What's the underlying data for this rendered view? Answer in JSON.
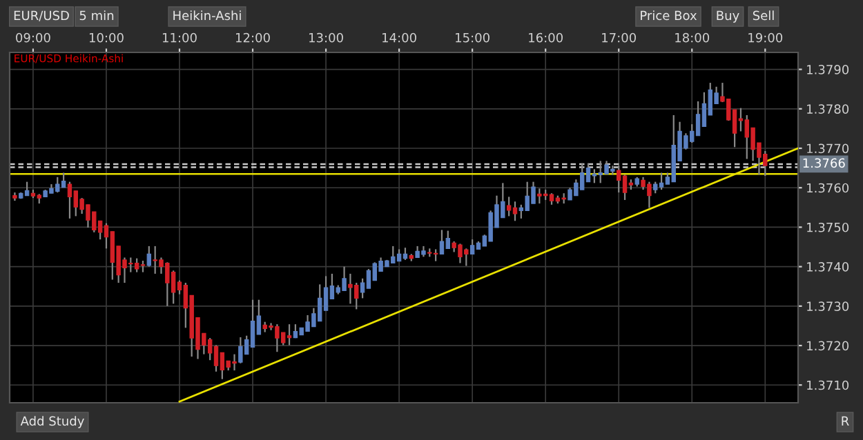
{
  "chart_data": {
    "type": "candlestick",
    "annotations": [
      "EUR/USD Heikin-Ashi",
      "EUR/USD",
      "5 min",
      "Heikin-Ashi",
      "Price Box",
      "Buy",
      "Sell",
      "Add Study",
      "R"
    ],
    "x": [
      8.75,
      8.8333,
      8.9167,
      9,
      9.0833,
      9.1667,
      9.25,
      9.3333,
      9.4167,
      9.5,
      9.5833,
      9.6667,
      9.75,
      9.8333,
      9.9167,
      10,
      10.0833,
      10.1667,
      10.25,
      10.3333,
      10.4167,
      10.5,
      10.5833,
      10.6667,
      10.75,
      10.8333,
      10.9167,
      11,
      11.0833,
      11.1667,
      11.25,
      11.3333,
      11.4167,
      11.5,
      11.5833,
      11.6667,
      11.75,
      11.8333,
      11.9167,
      12,
      12.0833,
      12.1667,
      12.25,
      12.3333,
      12.4167,
      12.5,
      12.5833,
      12.6667,
      12.75,
      12.8333,
      12.9167,
      13,
      13.0833,
      13.1667,
      13.25,
      13.3333,
      13.4167,
      13.5,
      13.5833,
      13.6667,
      13.75,
      13.8333,
      13.9167,
      14,
      14.0833,
      14.1667,
      14.25,
      14.3333,
      14.4167,
      14.5,
      14.5833,
      14.6667,
      14.75,
      14.8333,
      14.9167,
      15,
      15.0833,
      15.1667,
      15.25,
      15.3333,
      15.4167,
      15.5,
      15.5833,
      15.6667,
      15.75,
      15.8333,
      15.9167,
      16,
      16.0833,
      16.1667,
      16.25,
      16.3333,
      16.4167,
      16.5,
      16.5833,
      16.6667,
      16.75,
      16.8333,
      16.9167,
      17,
      17.0833,
      17.1667,
      17.25,
      17.3333,
      17.4167,
      17.5,
      17.5833,
      17.6667,
      17.75,
      17.8333,
      17.9167,
      18,
      18.0833,
      18.1667,
      18.25,
      18.3333,
      18.4167,
      18.5,
      18.5833,
      18.6667,
      18.75,
      18.8333,
      18.9167,
      19
    ],
    "ohlc": [
      [
        1.3758,
        1.37588,
        1.37567,
        1.37574
      ],
      [
        1.37574,
        1.37588,
        1.37572,
        1.37586
      ],
      [
        1.3758,
        1.37615,
        1.3758,
        1.37593
      ],
      [
        1.37586,
        1.37595,
        1.37574,
        1.37579
      ],
      [
        1.37581,
        1.37584,
        1.3756,
        1.37574
      ],
      [
        1.37577,
        1.37595,
        1.37577,
        1.37592
      ],
      [
        1.37586,
        1.37609,
        1.37586,
        1.37598
      ],
      [
        1.37591,
        1.37627,
        1.37588,
        1.37609
      ],
      [
        1.37601,
        1.37638,
        1.37601,
        1.37617
      ],
      [
        1.37609,
        1.37615,
        1.37522,
        1.37577
      ],
      [
        1.37592,
        1.37592,
        1.37528,
        1.37551
      ],
      [
        1.37571,
        1.37574,
        1.37534,
        1.37545
      ],
      [
        1.37557,
        1.37557,
        1.37499,
        1.37518
      ],
      [
        1.37539,
        1.37539,
        1.37487,
        1.37493
      ],
      [
        1.37516,
        1.37516,
        1.37469,
        1.37487
      ],
      [
        1.37504,
        1.3751,
        1.37446,
        1.37475
      ],
      [
        1.37489,
        1.37489,
        1.37367,
        1.37411
      ],
      [
        1.37452,
        1.37452,
        1.37359,
        1.37379
      ],
      [
        1.37417,
        1.37423,
        1.37359,
        1.37397
      ],
      [
        1.37409,
        1.37423,
        1.37386,
        1.37407
      ],
      [
        1.37409,
        1.37421,
        1.37386,
        1.37394
      ],
      [
        1.37405,
        1.37415,
        1.37386,
        1.37403
      ],
      [
        1.37403,
        1.37452,
        1.374,
        1.37432
      ],
      [
        1.37417,
        1.37452,
        1.37382,
        1.37415
      ],
      [
        1.37417,
        1.37423,
        1.37382,
        1.374
      ],
      [
        1.37409,
        1.37411,
        1.373,
        1.37359
      ],
      [
        1.37386,
        1.3739,
        1.37306,
        1.37335
      ],
      [
        1.37361,
        1.37365,
        1.3733,
        1.37341
      ],
      [
        1.37353,
        1.37359,
        1.37245,
        1.37295
      ],
      [
        1.37327,
        1.37327,
        1.37172,
        1.37219
      ],
      [
        1.37271,
        1.37271,
        1.37166,
        1.3719
      ],
      [
        1.37231,
        1.37231,
        1.37178,
        1.37201
      ],
      [
        1.37215,
        1.37219,
        1.37163,
        1.37181
      ],
      [
        1.37198,
        1.37201,
        1.37134,
        1.37149
      ],
      [
        1.37182,
        1.37182,
        1.37115,
        1.37138
      ],
      [
        1.37161,
        1.37161,
        1.37137,
        1.37145
      ],
      [
        1.37159,
        1.37178,
        1.37137,
        1.37155
      ],
      [
        1.37158,
        1.37221,
        1.37155,
        1.37198
      ],
      [
        1.37178,
        1.37225,
        1.37178,
        1.37215
      ],
      [
        1.37196,
        1.37316,
        1.37196,
        1.37262
      ],
      [
        1.37228,
        1.37316,
        1.37228,
        1.37275
      ],
      [
        1.37252,
        1.3726,
        1.37234,
        1.37243
      ],
      [
        1.3725,
        1.37257,
        1.37239,
        1.37246
      ],
      [
        1.37248,
        1.37254,
        1.37184,
        1.37219
      ],
      [
        1.37233,
        1.37233,
        1.37201,
        1.37207
      ],
      [
        1.37225,
        1.37254,
        1.37201,
        1.3722
      ],
      [
        1.3722,
        1.37254,
        1.37219,
        1.37236
      ],
      [
        1.37227,
        1.37245,
        1.37227,
        1.37245
      ],
      [
        1.37236,
        1.37277,
        1.37236,
        1.3726
      ],
      [
        1.37248,
        1.37295,
        1.37248,
        1.37281
      ],
      [
        1.37262,
        1.37355,
        1.37262,
        1.3732
      ],
      [
        1.37289,
        1.37376,
        1.37289,
        1.37347
      ],
      [
        1.37318,
        1.37382,
        1.37318,
        1.37351
      ],
      [
        1.37335,
        1.37353,
        1.3733,
        1.37347
      ],
      [
        1.37339,
        1.374,
        1.37339,
        1.3737
      ],
      [
        1.37355,
        1.37382,
        1.37306,
        1.37347
      ],
      [
        1.37353,
        1.37359,
        1.37292,
        1.3732
      ],
      [
        1.37335,
        1.3737,
        1.3732,
        1.37359
      ],
      [
        1.37345,
        1.37394,
        1.37345,
        1.3739
      ],
      [
        1.37365,
        1.37411,
        1.37365,
        1.37408
      ],
      [
        1.37388,
        1.37423,
        1.37388,
        1.37414
      ],
      [
        1.374,
        1.37417,
        1.374,
        1.37415
      ],
      [
        1.37409,
        1.37452,
        1.37409,
        1.37425
      ],
      [
        1.37414,
        1.37444,
        1.37414,
        1.37432
      ],
      [
        1.37421,
        1.37448,
        1.37417,
        1.37432
      ],
      [
        1.37428,
        1.37432,
        1.37414,
        1.37421
      ],
      [
        1.37423,
        1.37452,
        1.37423,
        1.37439
      ],
      [
        1.37431,
        1.37452,
        1.37425,
        1.3744
      ],
      [
        1.37436,
        1.37446,
        1.37425,
        1.37434
      ],
      [
        1.37434,
        1.37444,
        1.37414,
        1.37432
      ],
      [
        1.37432,
        1.37493,
        1.37432,
        1.37464
      ],
      [
        1.37446,
        1.37491,
        1.37446,
        1.37472
      ],
      [
        1.3746,
        1.37464,
        1.37437,
        1.37448
      ],
      [
        1.37455,
        1.37458,
        1.37409,
        1.37425
      ],
      [
        1.37443,
        1.37446,
        1.37402,
        1.37432
      ],
      [
        1.37432,
        1.37469,
        1.37432,
        1.37454
      ],
      [
        1.37444,
        1.37464,
        1.37444,
        1.3746
      ],
      [
        1.37452,
        1.37481,
        1.37452,
        1.37478
      ],
      [
        1.37464,
        1.37542,
        1.37464,
        1.37537
      ],
      [
        1.37499,
        1.3758,
        1.37499,
        1.37557
      ],
      [
        1.37524,
        1.37612,
        1.37524,
        1.37565
      ],
      [
        1.37555,
        1.37577,
        1.37528,
        1.37543
      ],
      [
        1.37549,
        1.37565,
        1.37516,
        1.37534
      ],
      [
        1.37542,
        1.37557,
        1.37522,
        1.37549
      ],
      [
        1.37542,
        1.37615,
        1.37542,
        1.37579
      ],
      [
        1.3756,
        1.37615,
        1.3756,
        1.37602
      ],
      [
        1.37584,
        1.37598,
        1.3756,
        1.37579
      ],
      [
        1.37584,
        1.37595,
        1.37569,
        1.3758
      ],
      [
        1.37583,
        1.37586,
        1.37557,
        1.37567
      ],
      [
        1.37574,
        1.3758,
        1.3756,
        1.37566
      ],
      [
        1.37574,
        1.37586,
        1.3756,
        1.37571
      ],
      [
        1.37569,
        1.376,
        1.37569,
        1.37595
      ],
      [
        1.3758,
        1.37621,
        1.3758,
        1.37612
      ],
      [
        1.37595,
        1.37662,
        1.37595,
        1.37638
      ],
      [
        1.37615,
        1.37662,
        1.37615,
        1.3765
      ],
      [
        1.3763,
        1.37647,
        1.37612,
        1.37635
      ],
      [
        1.37633,
        1.37668,
        1.37612,
        1.37638
      ],
      [
        1.37635,
        1.37668,
        1.37635,
        1.37658
      ],
      [
        1.37642,
        1.37656,
        1.37633,
        1.37647
      ],
      [
        1.37644,
        1.37656,
        1.37588,
        1.37619
      ],
      [
        1.3763,
        1.37633,
        1.37569,
        1.37588
      ],
      [
        1.37612,
        1.37621,
        1.37595,
        1.37607
      ],
      [
        1.37609,
        1.37627,
        1.37603,
        1.37623
      ],
      [
        1.37619,
        1.37627,
        1.37595,
        1.37603
      ],
      [
        1.37609,
        1.37615,
        1.37549,
        1.3758
      ],
      [
        1.37595,
        1.37615,
        1.37586,
        1.37609
      ],
      [
        1.37602,
        1.37638,
        1.37595,
        1.37612
      ],
      [
        1.37609,
        1.37638,
        1.37609,
        1.37627
      ],
      [
        1.37615,
        1.37784,
        1.37615,
        1.37708
      ],
      [
        1.37668,
        1.37767,
        1.37668,
        1.37743
      ],
      [
        1.377,
        1.37738,
        1.37697,
        1.37732
      ],
      [
        1.37717,
        1.37761,
        1.37714,
        1.37743
      ],
      [
        1.37732,
        1.37819,
        1.37732,
        1.37786
      ],
      [
        1.37755,
        1.37842,
        1.37755,
        1.37813
      ],
      [
        1.37784,
        1.37866,
        1.37784,
        1.37848
      ],
      [
        1.37813,
        1.37856,
        1.37813,
        1.3784
      ],
      [
        1.37831,
        1.37866,
        1.37817,
        1.37819
      ],
      [
        1.37825,
        1.37825,
        1.3777,
        1.37772
      ],
      [
        1.37798,
        1.37798,
        1.37703,
        1.37738
      ],
      [
        1.37775,
        1.37802,
        1.37743,
        1.3777
      ],
      [
        1.37772,
        1.37784,
        1.37673,
        1.37728
      ],
      [
        1.37752,
        1.37752,
        1.37668,
        1.37697
      ],
      [
        1.37714,
        1.37714,
        1.37633,
        1.37677
      ],
      [
        1.37685,
        1.37693,
        1.3763,
        1.37656
      ]
    ],
    "colors": [
      "#d42027",
      "#5b80c2",
      "#5b80c2",
      "#d42027",
      "#d42027",
      "#5b80c2",
      "#5b80c2",
      "#5b80c2",
      "#5b80c2",
      "#d42027",
      "#d42027",
      "#d42027",
      "#d42027",
      "#d42027",
      "#d42027",
      "#d42027",
      "#d42027",
      "#d42027",
      "#d42027",
      "#d42027",
      "#d42027",
      "#d42027",
      "#5b80c2",
      "#d42027",
      "#d42027",
      "#d42027",
      "#d42027",
      "#d42027",
      "#d42027",
      "#d42027",
      "#d42027",
      "#d42027",
      "#d42027",
      "#d42027",
      "#d42027",
      "#d42027",
      "#d42027",
      "#5b80c2",
      "#5b80c2",
      "#5b80c2",
      "#5b80c2",
      "#d42027",
      "#d42027",
      "#d42027",
      "#d42027",
      "#d42027",
      "#5b80c2",
      "#5b80c2",
      "#5b80c2",
      "#5b80c2",
      "#5b80c2",
      "#5b80c2",
      "#5b80c2",
      "#5b80c2",
      "#5b80c2",
      "#d42027",
      "#d42027",
      "#5b80c2",
      "#5b80c2",
      "#5b80c2",
      "#5b80c2",
      "#5b80c2",
      "#5b80c2",
      "#5b80c2",
      "#5b80c2",
      "#d42027",
      "#5b80c2",
      "#5b80c2",
      "#d42027",
      "#d42027",
      "#5b80c2",
      "#5b80c2",
      "#d42027",
      "#d42027",
      "#d42027",
      "#5b80c2",
      "#5b80c2",
      "#5b80c2",
      "#5b80c2",
      "#5b80c2",
      "#5b80c2",
      "#d42027",
      "#d42027",
      "#5b80c2",
      "#5b80c2",
      "#5b80c2",
      "#d42027",
      "#d42027",
      "#d42027",
      "#d42027",
      "#d42027",
      "#5b80c2",
      "#5b80c2",
      "#5b80c2",
      "#5b80c2",
      "#5b80c2",
      "#5b80c2",
      "#5b80c2",
      "#5b80c2",
      "#d42027",
      "#d42027",
      "#d42027",
      "#5b80c2",
      "#d42027",
      "#d42027",
      "#5b80c2",
      "#5b80c2",
      "#5b80c2",
      "#5b80c2",
      "#5b80c2",
      "#5b80c2",
      "#5b80c2",
      "#5b80c2",
      "#5b80c2",
      "#5b80c2",
      "#5b80c2",
      "#d42027",
      "#d42027",
      "#d42027",
      "#d42027",
      "#d42027",
      "#d42027",
      "#d42027",
      "#d42027"
    ],
    "series": [
      {
        "type": "line",
        "color": "#e8e000",
        "x": [
          11.0,
          19.45
        ],
        "values": [
          1.37058,
          1.377
        ]
      }
    ],
    "ref_lines": [
      {
        "axis": "y",
        "value": 1.37635,
        "color": "#e8e000",
        "line_style": "solid"
      },
      {
        "axis": "y",
        "value": 1.3766,
        "label": "1.3766",
        "color": "#c8c8c8",
        "line_style": "dashed"
      },
      {
        "axis": "y",
        "value": 1.37652,
        "color": "#c8c8c8",
        "line_style": "dashed"
      }
    ],
    "xlim": [
      8.68,
      19.45
    ],
    "xticks": [
      {
        "value": 9,
        "label": "09:00"
      },
      {
        "value": 10,
        "label": "10:00"
      },
      {
        "value": 11,
        "label": "11:00"
      },
      {
        "value": 12,
        "label": "12:00"
      },
      {
        "value": 13,
        "label": "13:00"
      },
      {
        "value": 14,
        "label": "14:00"
      },
      {
        "value": 15,
        "label": "15:00"
      },
      {
        "value": 16,
        "label": "16:00"
      },
      {
        "value": 17,
        "label": "17:00"
      },
      {
        "value": 18,
        "label": "18:00"
      },
      {
        "value": 19,
        "label": "19:00"
      }
    ],
    "ylim": [
      1.37055,
      1.37943
    ],
    "yticks": [
      {
        "value": 1.371,
        "label": "1.3710"
      },
      {
        "value": 1.372,
        "label": "1.3720"
      },
      {
        "value": 1.373,
        "label": "1.3730"
      },
      {
        "value": 1.374,
        "label": "1.3740"
      },
      {
        "value": 1.375,
        "label": "1.3750"
      },
      {
        "value": 1.376,
        "label": "1.3760"
      },
      {
        "value": 1.377,
        "label": "1.3770"
      },
      {
        "value": 1.378,
        "label": "1.3780"
      },
      {
        "value": 1.379,
        "label": "1.3790"
      }
    ],
    "grid": true
  }
}
